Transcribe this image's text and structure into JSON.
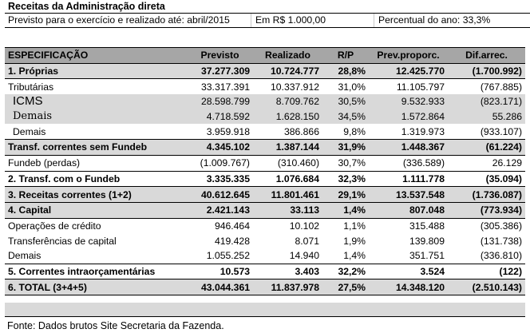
{
  "title": "Receitas da Administração direta",
  "subtitle": {
    "period": "Previsto para o exercício e realizado até: abril/2015",
    "unit": "Em R$ 1.000,00",
    "percent": "Percentual do ano: 33,3%"
  },
  "header": [
    "ESPECIFICAÇÃO",
    "Previsto",
    "Realizado",
    "R/P",
    "Prev.proporc.",
    "Dif.arrec."
  ],
  "rows": [
    {
      "label": "1. Próprias",
      "previsto": "37.277.309",
      "realizado": "10.724.777",
      "rp": "28,8%",
      "prev": "12.425.770",
      "dif": "(1.700.992)"
    },
    {
      "label": "Tributárias",
      "previsto": "33.317.391",
      "realizado": "10.337.912",
      "rp": "31,0%",
      "prev": "11.105.797",
      "dif": "(767.885)"
    },
    {
      "label": "ICMS",
      "previsto": "28.598.799",
      "realizado": "8.709.762",
      "rp": "30,5%",
      "prev": "9.532.933",
      "dif": "(823.171)"
    },
    {
      "label": "Demais",
      "previsto": "4.718.592",
      "realizado": "1.628.150",
      "rp": "34,5%",
      "prev": "1.572.864",
      "dif": "55.286"
    },
    {
      "label": "Demais",
      "previsto": "3.959.918",
      "realizado": "386.866",
      "rp": "9,8%",
      "prev": "1.319.973",
      "dif": "(933.107)"
    },
    {
      "label": "Transf. correntes sem Fundeb",
      "previsto": "4.345.102",
      "realizado": "1.387.144",
      "rp": "31,9%",
      "prev": "1.448.367",
      "dif": "(61.224)"
    },
    {
      "label": "Fundeb (perdas)",
      "previsto": "(1.009.767)",
      "realizado": "(310.460)",
      "rp": "30,7%",
      "prev": "(336.589)",
      "dif": "26.129"
    },
    {
      "label": "2. Transf. com o Fundeb",
      "previsto": "3.335.335",
      "realizado": "1.076.684",
      "rp": "32,3%",
      "prev": "1.111.778",
      "dif": "(35.094)"
    },
    {
      "label": "3. Receitas correntes (1+2)",
      "previsto": "40.612.645",
      "realizado": "11.801.461",
      "rp": "29,1%",
      "prev": "13.537.548",
      "dif": "(1.736.087)"
    },
    {
      "label": "4. Capital",
      "previsto": "2.421.143",
      "realizado": "33.113",
      "rp": "1,4%",
      "prev": "807.048",
      "dif": "(773.934)"
    },
    {
      "label": "Operações de crédito",
      "previsto": "946.464",
      "realizado": "10.102",
      "rp": "1,1%",
      "prev": "315.488",
      "dif": "(305.386)"
    },
    {
      "label": "Transferências de capital",
      "previsto": "419.428",
      "realizado": "8.071",
      "rp": "1,9%",
      "prev": "139.809",
      "dif": "(131.738)"
    },
    {
      "label": "Demais",
      "previsto": "1.055.252",
      "realizado": "14.940",
      "rp": "1,4%",
      "prev": "351.751",
      "dif": "(336.810)"
    },
    {
      "label": "5. Correntes intraorçamentárias",
      "previsto": "10.573",
      "realizado": "3.403",
      "rp": "32,2%",
      "prev": "3.524",
      "dif": "(122)"
    },
    {
      "label": "6. TOTAL (3+4+5)",
      "previsto": "43.044.361",
      "realizado": "11.837.978",
      "rp": "27,5%",
      "prev": "14.348.120",
      "dif": "(2.510.143)"
    }
  ],
  "footer": "Fonte: Dados brutos Site Secretaria da Fazenda."
}
